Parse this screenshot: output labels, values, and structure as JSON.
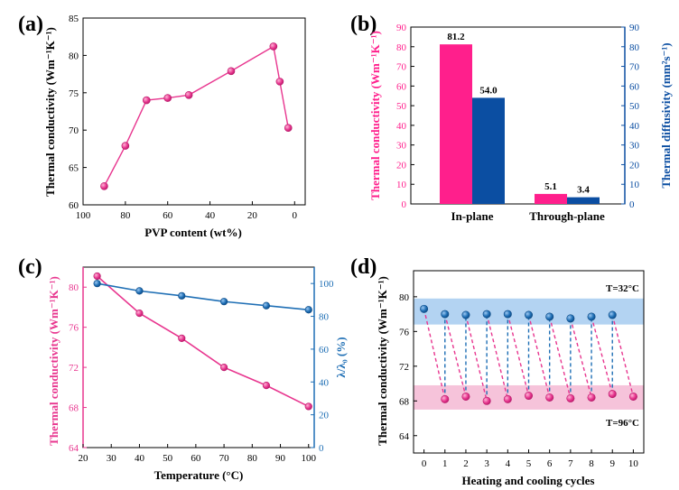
{
  "chart_data": [
    {
      "panel": "(a)",
      "type": "line",
      "xlabel": "PVP content (wt%)",
      "ylabel": "Thermal conductivity (Wm⁻¹K⁻¹)",
      "xlim": [
        100,
        -5
      ],
      "ylim": [
        60,
        85
      ],
      "xticks": [
        "100",
        "80",
        "60",
        "40",
        "20",
        "0"
      ],
      "yticks": [
        "60",
        "65",
        "70",
        "75",
        "80",
        "85"
      ],
      "x": [
        90,
        80,
        70,
        60,
        50,
        30,
        10,
        7,
        3
      ],
      "y": [
        62.5,
        67.9,
        74.0,
        74.3,
        74.7,
        77.9,
        81.2,
        76.5,
        70.3
      ],
      "color": "#e8368f"
    },
    {
      "panel": "(b)",
      "type": "bar",
      "categories": [
        "In-plane",
        "Through-plane"
      ],
      "series": [
        {
          "name": "Thermal conductivity",
          "values": [
            81.2,
            5.1
          ],
          "labels": [
            "81.2",
            "5.1"
          ],
          "color": "#ff1f8c"
        },
        {
          "name": "Thermal diffusivity",
          "values": [
            54.0,
            3.4
          ],
          "labels": [
            "54.0",
            "3.4"
          ],
          "color": "#0b4ea2"
        }
      ],
      "ylabel": "Thermal conductivity (Wm⁻¹K⁻¹)",
      "y2label": "Thermal diffusivity (mm²s⁻¹)",
      "ylim": [
        0,
        90
      ],
      "yticks": [
        "0",
        "10",
        "20",
        "30",
        "40",
        "50",
        "60",
        "70",
        "80",
        "90"
      ],
      "y2ticks": [
        "0",
        "10",
        "20",
        "30",
        "40",
        "50",
        "60",
        "70",
        "80",
        "90"
      ]
    },
    {
      "panel": "(c)",
      "type": "line",
      "xlabel": "Temperature (°C)",
      "ylabel": "Thermal conductivity (Wm⁻¹K⁻¹)",
      "y2label": "λ/λ₀ (%)",
      "xlim": [
        20,
        102
      ],
      "ylim": [
        64,
        82
      ],
      "y2lim": [
        0,
        110
      ],
      "xticks": [
        "20",
        "30",
        "40",
        "50",
        "60",
        "70",
        "80",
        "90",
        "100"
      ],
      "yticks": [
        "64",
        "68",
        "72",
        "76",
        "80"
      ],
      "y2ticks": [
        "0",
        "20",
        "40",
        "60",
        "80",
        "100"
      ],
      "series": [
        {
          "name": "Thermal conductivity",
          "axis": "left",
          "x": [
            25,
            40,
            55,
            70,
            85,
            100
          ],
          "y": [
            81.1,
            77.4,
            74.9,
            72.0,
            70.2,
            68.1
          ],
          "color": "#e8368f"
        },
        {
          "name": "λ/λ0",
          "axis": "right",
          "x": [
            25,
            40,
            55,
            70,
            85,
            100
          ],
          "y": [
            100,
            95.5,
            92.5,
            89.0,
            86.5,
            84.0
          ],
          "color": "#1f6fb5"
        }
      ]
    },
    {
      "panel": "(d)",
      "type": "line",
      "xlabel": "Heating and cooling cycles",
      "ylabel": "Thermal conductivity (Wm⁻¹K⁻¹)",
      "xlim": [
        -0.5,
        10.5
      ],
      "ylim": [
        62,
        83
      ],
      "xticks": [
        "0",
        "1",
        "2",
        "3",
        "4",
        "5",
        "6",
        "7",
        "8",
        "9",
        "10"
      ],
      "yticks": [
        "64",
        "68",
        "72",
        "76",
        "80"
      ],
      "annotations": [
        "T=32°C",
        "T=96°C"
      ],
      "bands": [
        {
          "name": "T=32°C",
          "range": [
            76.8,
            79.8
          ],
          "color": "#b3d3f2"
        },
        {
          "name": "T=96°C",
          "range": [
            67.0,
            69.8
          ],
          "color": "#f6c3da"
        }
      ],
      "series": [
        {
          "name": "T=32°C",
          "x": [
            0,
            1,
            2,
            3,
            4,
            5,
            6,
            7,
            8,
            9
          ],
          "y": [
            78.6,
            78.0,
            77.9,
            78.0,
            78.0,
            77.9,
            77.7,
            77.5,
            77.7,
            77.9
          ],
          "color": "#1f6fb5"
        },
        {
          "name": "T=96°C",
          "x": [
            1,
            2,
            3,
            4,
            5,
            6,
            7,
            8,
            9,
            10
          ],
          "y": [
            68.2,
            68.5,
            68.0,
            68.2,
            68.6,
            68.4,
            68.3,
            68.4,
            68.8,
            68.5
          ],
          "color": "#e8368f"
        }
      ]
    }
  ]
}
